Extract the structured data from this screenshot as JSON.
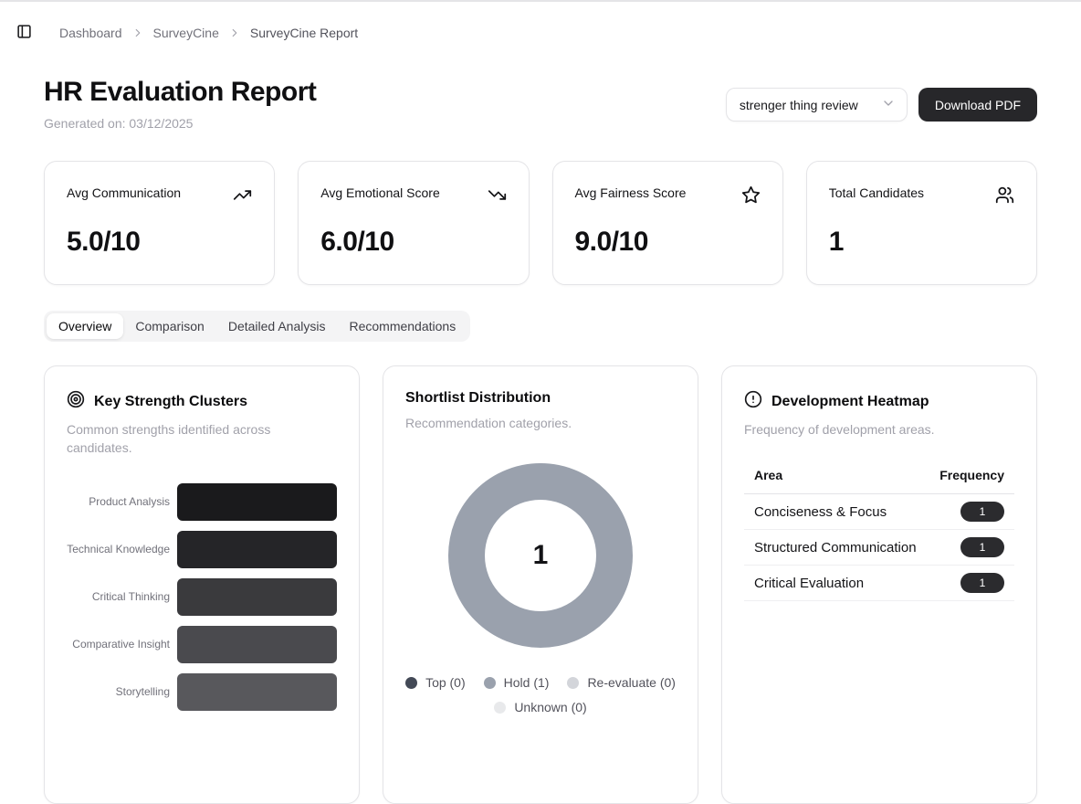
{
  "theme": {
    "button_bg": "#27272a",
    "badge_bg": "#2b2b2e",
    "card_border": "#e4e4e7",
    "muted_text": "#a1a1aa"
  },
  "topbar": {
    "breadcrumb": [
      {
        "label": "Dashboard",
        "current": false
      },
      {
        "label": "SurveyCine",
        "current": false
      },
      {
        "label": "SurveyCine Report",
        "current": true
      }
    ]
  },
  "header": {
    "title": "HR Evaluation Report",
    "generated": "Generated on: 03/12/2025",
    "review_select_value": "strenger thing review",
    "download_button": "Download PDF"
  },
  "stats": [
    {
      "label": "Avg Communication",
      "icon": "trending-up-icon",
      "value": "5.0/10"
    },
    {
      "label": "Avg Emotional Score",
      "icon": "trending-down-icon",
      "value": "6.0/10"
    },
    {
      "label": "Avg Fairness Score",
      "icon": "star-icon",
      "value": "9.0/10"
    },
    {
      "label": "Total Candidates",
      "icon": "users-icon",
      "value": "1"
    }
  ],
  "tabs": [
    {
      "label": "Overview",
      "active": true
    },
    {
      "label": "Comparison",
      "active": false
    },
    {
      "label": "Detailed Analysis",
      "active": false
    },
    {
      "label": "Recommendations",
      "active": false
    }
  ],
  "panels": {
    "strengths": {
      "icon": "target-icon",
      "title": "Key Strength Clusters",
      "subtitle": "Common strengths identified across candidates."
    },
    "shortlist": {
      "title": "Shortlist Distribution",
      "subtitle": "Recommendation categories.",
      "center_value": "1"
    },
    "heatmap": {
      "icon": "alert-circle-icon",
      "title": "Development Heatmap",
      "subtitle": "Frequency of development areas."
    }
  },
  "chart_data": [
    {
      "type": "bar",
      "orientation": "horizontal",
      "title": "Key Strength Clusters",
      "categories": [
        "Product Analysis",
        "Technical Knowledge",
        "Critical Thinking",
        "Comparative Insight",
        "Storytelling"
      ],
      "values": [
        1,
        1,
        1,
        1,
        1
      ],
      "colors": [
        "#1a1a1c",
        "#252528",
        "#3a3a3d",
        "#4a4a4e",
        "#58585c"
      ],
      "xlabel": "",
      "ylabel": "",
      "xlim": [
        0,
        1
      ],
      "grid": false,
      "legend": false
    },
    {
      "type": "pie",
      "subtype": "donut",
      "title": "Shortlist Distribution",
      "categories": [
        "Top",
        "Hold",
        "Re-evaluate",
        "Unknown"
      ],
      "values": [
        0,
        1,
        0,
        0
      ],
      "colors": [
        "#434956",
        "#9aa1ad",
        "#d3d5da",
        "#e8e9eb"
      ],
      "center_label": "1",
      "legend_position": "bottom"
    },
    {
      "type": "table",
      "title": "Development Heatmap",
      "columns": [
        "Area",
        "Frequency"
      ],
      "rows": [
        [
          "Conciseness & Focus",
          1
        ],
        [
          "Structured Communication",
          1
        ],
        [
          "Critical Evaluation",
          1
        ]
      ]
    }
  ]
}
